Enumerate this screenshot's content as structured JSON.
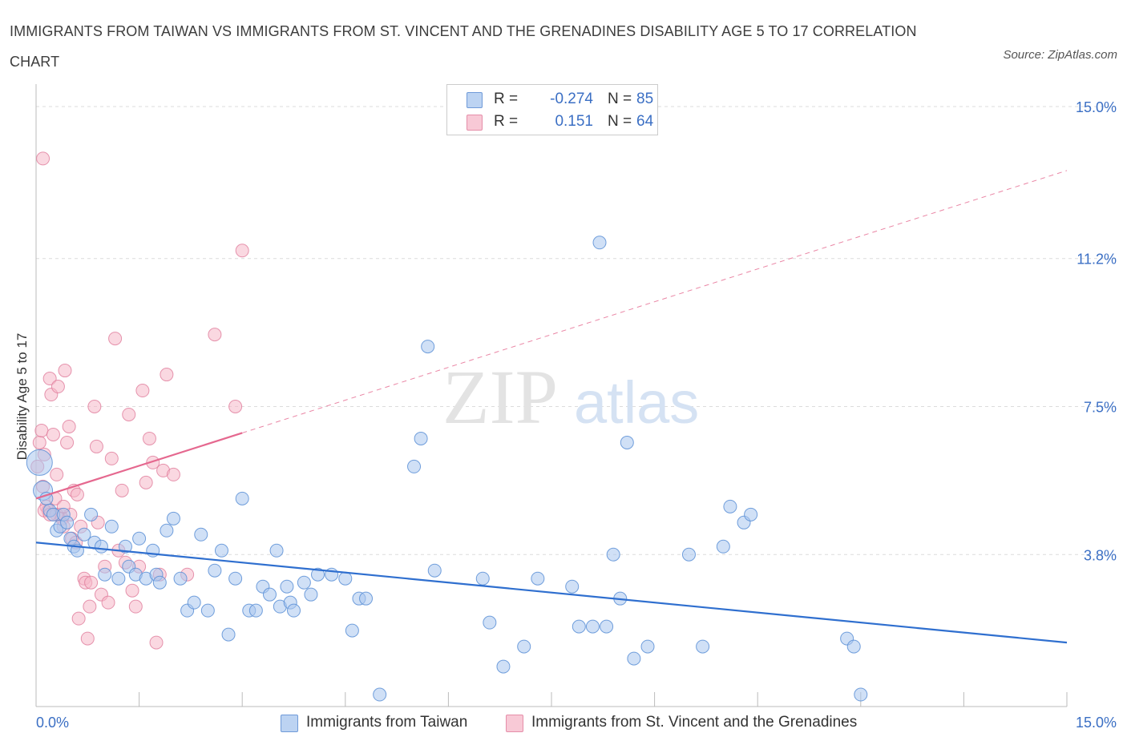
{
  "title": "IMMIGRANTS FROM TAIWAN VS IMMIGRANTS FROM ST. VINCENT AND THE GRENADINES DISABILITY AGE 5 TO 17 CORRELATION CHART",
  "source": "Source: ZipAtlas.com",
  "watermark": {
    "zip": "ZIP",
    "atlas": "atlas"
  },
  "colors": {
    "blue_fill": "#a9c6ee",
    "blue_stroke": "#5b8fd6",
    "blue_line": "#2f6fcf",
    "pink_fill": "#f5b8c9",
    "pink_stroke": "#e07c9b",
    "pink_line": "#e5688f",
    "tick_label": "#3b6fc4",
    "grid": "#dcdcdc"
  },
  "legend": {
    "rows": [
      {
        "r_label": "R =",
        "r_value": "-0.274",
        "n_label": "N =",
        "n_value": "85",
        "color": "#a9c6ee"
      },
      {
        "r_label": "R =",
        "r_value": "0.151",
        "n_label": "N =",
        "n_value": "64",
        "color": "#f5b8c9"
      }
    ]
  },
  "bottom_legend": [
    {
      "label": "Immigrants from Taiwan",
      "color": "#a9c6ee"
    },
    {
      "label": "Immigrants from St. Vincent and the Grenadines",
      "color": "#f5b8c9"
    }
  ],
  "chart_data": {
    "type": "scatter",
    "title": "IMMIGRANTS FROM TAIWAN VS IMMIGRANTS FROM ST. VINCENT AND THE GRENADINES DISABILITY AGE 5 TO 17 CORRELATION CHART",
    "xlabel": "",
    "ylabel": "Disability Age 5 to 17",
    "xlim": [
      0,
      15
    ],
    "ylim": [
      0,
      15
    ],
    "x_tick_labels": [
      "0.0%",
      "15.0%"
    ],
    "y_ticks": [
      3.8,
      7.5,
      11.2,
      15.0
    ],
    "y_tick_labels": [
      "3.8%",
      "7.5%",
      "11.2%",
      "15.0%"
    ],
    "grid": true,
    "legend_position": "top-center",
    "series": [
      {
        "name": "Immigrants from Taiwan",
        "r": -0.274,
        "n": 85,
        "trend": {
          "x": [
            0,
            15
          ],
          "y": [
            4.1,
            1.6
          ]
        },
        "points": [
          [
            0.05,
            6.1
          ],
          [
            0.1,
            5.4
          ],
          [
            0.15,
            5.2
          ],
          [
            0.2,
            4.9
          ],
          [
            0.25,
            4.8
          ],
          [
            0.3,
            4.4
          ],
          [
            0.35,
            4.5
          ],
          [
            0.4,
            4.8
          ],
          [
            0.45,
            4.6
          ],
          [
            0.5,
            4.2
          ],
          [
            0.55,
            4.0
          ],
          [
            0.6,
            3.9
          ],
          [
            0.7,
            4.3
          ],
          [
            0.8,
            4.8
          ],
          [
            0.85,
            4.1
          ],
          [
            0.95,
            4.0
          ],
          [
            1.0,
            3.3
          ],
          [
            1.1,
            4.5
          ],
          [
            1.2,
            3.2
          ],
          [
            1.3,
            4.0
          ],
          [
            1.35,
            3.5
          ],
          [
            1.45,
            3.3
          ],
          [
            1.5,
            4.2
          ],
          [
            1.6,
            3.2
          ],
          [
            1.7,
            3.9
          ],
          [
            1.75,
            3.3
          ],
          [
            1.8,
            3.1
          ],
          [
            1.9,
            4.4
          ],
          [
            2.0,
            4.7
          ],
          [
            2.1,
            3.2
          ],
          [
            2.2,
            2.4
          ],
          [
            2.3,
            2.6
          ],
          [
            2.4,
            4.3
          ],
          [
            2.5,
            2.4
          ],
          [
            2.6,
            3.4
          ],
          [
            2.7,
            3.9
          ],
          [
            2.8,
            1.8
          ],
          [
            2.9,
            3.2
          ],
          [
            3.0,
            5.2
          ],
          [
            3.1,
            2.4
          ],
          [
            3.2,
            2.4
          ],
          [
            3.3,
            3.0
          ],
          [
            3.4,
            2.8
          ],
          [
            3.5,
            3.9
          ],
          [
            3.55,
            2.5
          ],
          [
            3.65,
            3.0
          ],
          [
            3.7,
            2.6
          ],
          [
            3.75,
            2.4
          ],
          [
            3.9,
            3.1
          ],
          [
            4.0,
            2.8
          ],
          [
            4.1,
            3.3
          ],
          [
            4.3,
            3.3
          ],
          [
            4.5,
            3.2
          ],
          [
            4.6,
            1.9
          ],
          [
            4.7,
            2.7
          ],
          [
            4.8,
            2.7
          ],
          [
            5.0,
            0.3
          ],
          [
            5.5,
            6.0
          ],
          [
            5.6,
            6.7
          ],
          [
            5.7,
            9.0
          ],
          [
            5.8,
            3.4
          ],
          [
            6.5,
            3.2
          ],
          [
            6.6,
            2.1
          ],
          [
            6.8,
            1.0
          ],
          [
            7.1,
            1.5
          ],
          [
            7.3,
            3.2
          ],
          [
            7.8,
            3.0
          ],
          [
            7.9,
            2.0
          ],
          [
            8.1,
            2.0
          ],
          [
            8.2,
            11.6
          ],
          [
            8.3,
            2.0
          ],
          [
            8.4,
            3.8
          ],
          [
            8.5,
            2.7
          ],
          [
            8.6,
            6.6
          ],
          [
            8.7,
            1.2
          ],
          [
            8.9,
            1.5
          ],
          [
            9.5,
            3.8
          ],
          [
            9.7,
            1.5
          ],
          [
            10.0,
            4.0
          ],
          [
            10.1,
            5.0
          ],
          [
            10.3,
            4.6
          ],
          [
            10.4,
            4.8
          ],
          [
            11.8,
            1.7
          ],
          [
            11.9,
            1.5
          ],
          [
            12.0,
            0.3
          ]
        ]
      },
      {
        "name": "Immigrants from St. Vincent and the Grenadines",
        "r": 0.151,
        "n": 64,
        "trend": {
          "x": [
            0,
            15
          ],
          "y": [
            5.2,
            13.4
          ]
        },
        "points": [
          [
            0.02,
            6.0
          ],
          [
            0.05,
            6.6
          ],
          [
            0.08,
            6.9
          ],
          [
            0.1,
            5.5
          ],
          [
            0.12,
            6.3
          ],
          [
            0.15,
            5.0
          ],
          [
            0.18,
            4.9
          ],
          [
            0.2,
            8.2
          ],
          [
            0.22,
            7.8
          ],
          [
            0.25,
            6.8
          ],
          [
            0.28,
            5.2
          ],
          [
            0.3,
            5.8
          ],
          [
            0.32,
            8.0
          ],
          [
            0.35,
            4.8
          ],
          [
            0.38,
            4.7
          ],
          [
            0.4,
            4.5
          ],
          [
            0.42,
            8.4
          ],
          [
            0.45,
            6.6
          ],
          [
            0.48,
            7.0
          ],
          [
            0.5,
            4.8
          ],
          [
            0.52,
            4.2
          ],
          [
            0.55,
            5.4
          ],
          [
            0.58,
            4.1
          ],
          [
            0.6,
            5.3
          ],
          [
            0.62,
            2.2
          ],
          [
            0.65,
            4.5
          ],
          [
            0.7,
            3.2
          ],
          [
            0.72,
            3.1
          ],
          [
            0.75,
            1.7
          ],
          [
            0.78,
            2.5
          ],
          [
            0.8,
            3.1
          ],
          [
            0.85,
            7.5
          ],
          [
            0.88,
            6.5
          ],
          [
            0.9,
            4.6
          ],
          [
            0.95,
            2.8
          ],
          [
            1.0,
            3.5
          ],
          [
            1.05,
            2.6
          ],
          [
            1.1,
            6.2
          ],
          [
            1.15,
            9.2
          ],
          [
            1.2,
            3.9
          ],
          [
            1.25,
            5.4
          ],
          [
            1.3,
            3.6
          ],
          [
            1.35,
            7.3
          ],
          [
            1.4,
            2.9
          ],
          [
            1.45,
            2.5
          ],
          [
            1.5,
            3.5
          ],
          [
            1.55,
            7.9
          ],
          [
            1.6,
            5.6
          ],
          [
            1.65,
            6.7
          ],
          [
            1.7,
            6.1
          ],
          [
            1.75,
            1.6
          ],
          [
            1.8,
            3.3
          ],
          [
            1.85,
            5.9
          ],
          [
            1.9,
            8.3
          ],
          [
            2.0,
            5.8
          ],
          [
            2.2,
            3.3
          ],
          [
            2.6,
            9.3
          ],
          [
            2.9,
            7.5
          ],
          [
            3.0,
            11.4
          ],
          [
            0.1,
            13.7
          ],
          [
            0.12,
            4.9
          ],
          [
            0.3,
            4.8
          ],
          [
            0.4,
            5.0
          ],
          [
            0.2,
            4.8
          ]
        ]
      }
    ]
  }
}
